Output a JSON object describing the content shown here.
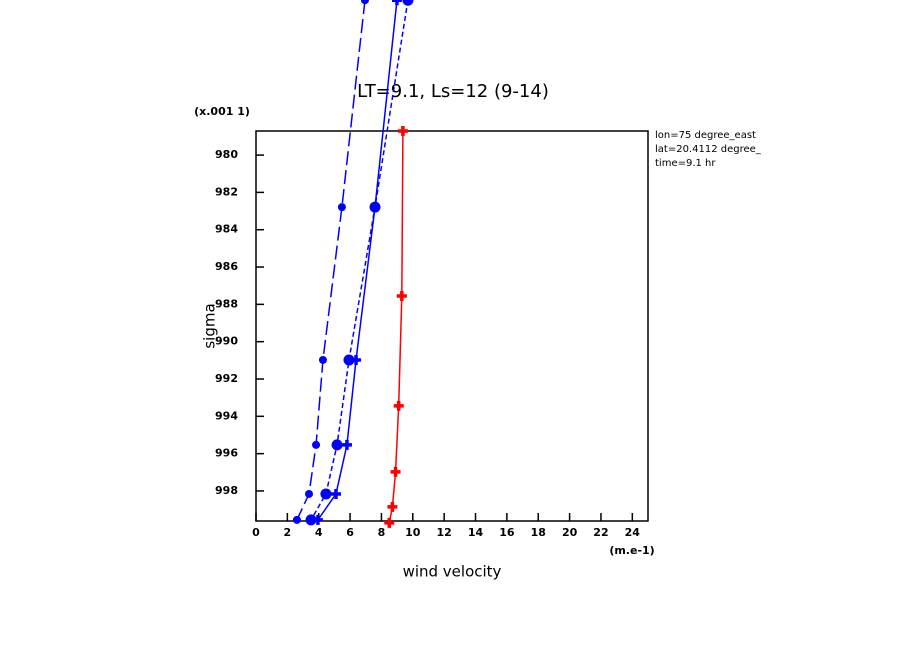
{
  "chart_data": {
    "type": "line",
    "title": "LT=9.1, Ls=12 (9-14)",
    "x_label": "wind velocity",
    "y_label": "sigma",
    "x_unit": "(m.e-1)",
    "y_unit": "(x.001 1)",
    "annotations": [
      "lon=75 degree_east",
      "lat=20.4112 degree_",
      "time=9.1 hr"
    ],
    "xlim": [
      0,
      25
    ],
    "ylim": [
      999.61,
      978.71
    ],
    "y_inverted": true,
    "xticks": [
      0,
      2,
      4,
      6,
      8,
      10,
      12,
      14,
      16,
      18,
      20,
      22,
      24
    ],
    "yticks": [
      980,
      982,
      984,
      986,
      988,
      990,
      992,
      994,
      996,
      998
    ],
    "series": [
      {
        "color": "#0000ff",
        "dash": "long",
        "marker": "dot",
        "values": [
          6.95,
          5.48,
          4.27,
          3.83,
          3.38,
          2.61
        ],
        "y": [
          971.7,
          982.79,
          990.98,
          995.53,
          998.16,
          999.55
        ]
      },
      {
        "color": "#0000ff",
        "dash": "short",
        "marker": "circle",
        "values": [
          9.69,
          7.59,
          5.93,
          5.17,
          4.46,
          3.51
        ],
        "y": [
          971.7,
          982.79,
          990.98,
          995.53,
          998.16,
          999.55
        ]
      },
      {
        "color": "#0000ff",
        "dash": "solid",
        "marker": "plus",
        "values": [
          8.99,
          7.59,
          6.38,
          5.8,
          5.1,
          3.95
        ],
        "y": [
          971.7,
          982.79,
          990.98,
          995.53,
          998.16,
          999.55
        ]
      },
      {
        "color": "#ff0000",
        "dash": "solid",
        "marker": "plus",
        "values": [
          9.37,
          9.3,
          9.1,
          8.9,
          8.7,
          8.5
        ],
        "y": [
          978.71,
          987.55,
          993.44,
          996.98,
          998.85,
          999.71
        ]
      }
    ]
  }
}
